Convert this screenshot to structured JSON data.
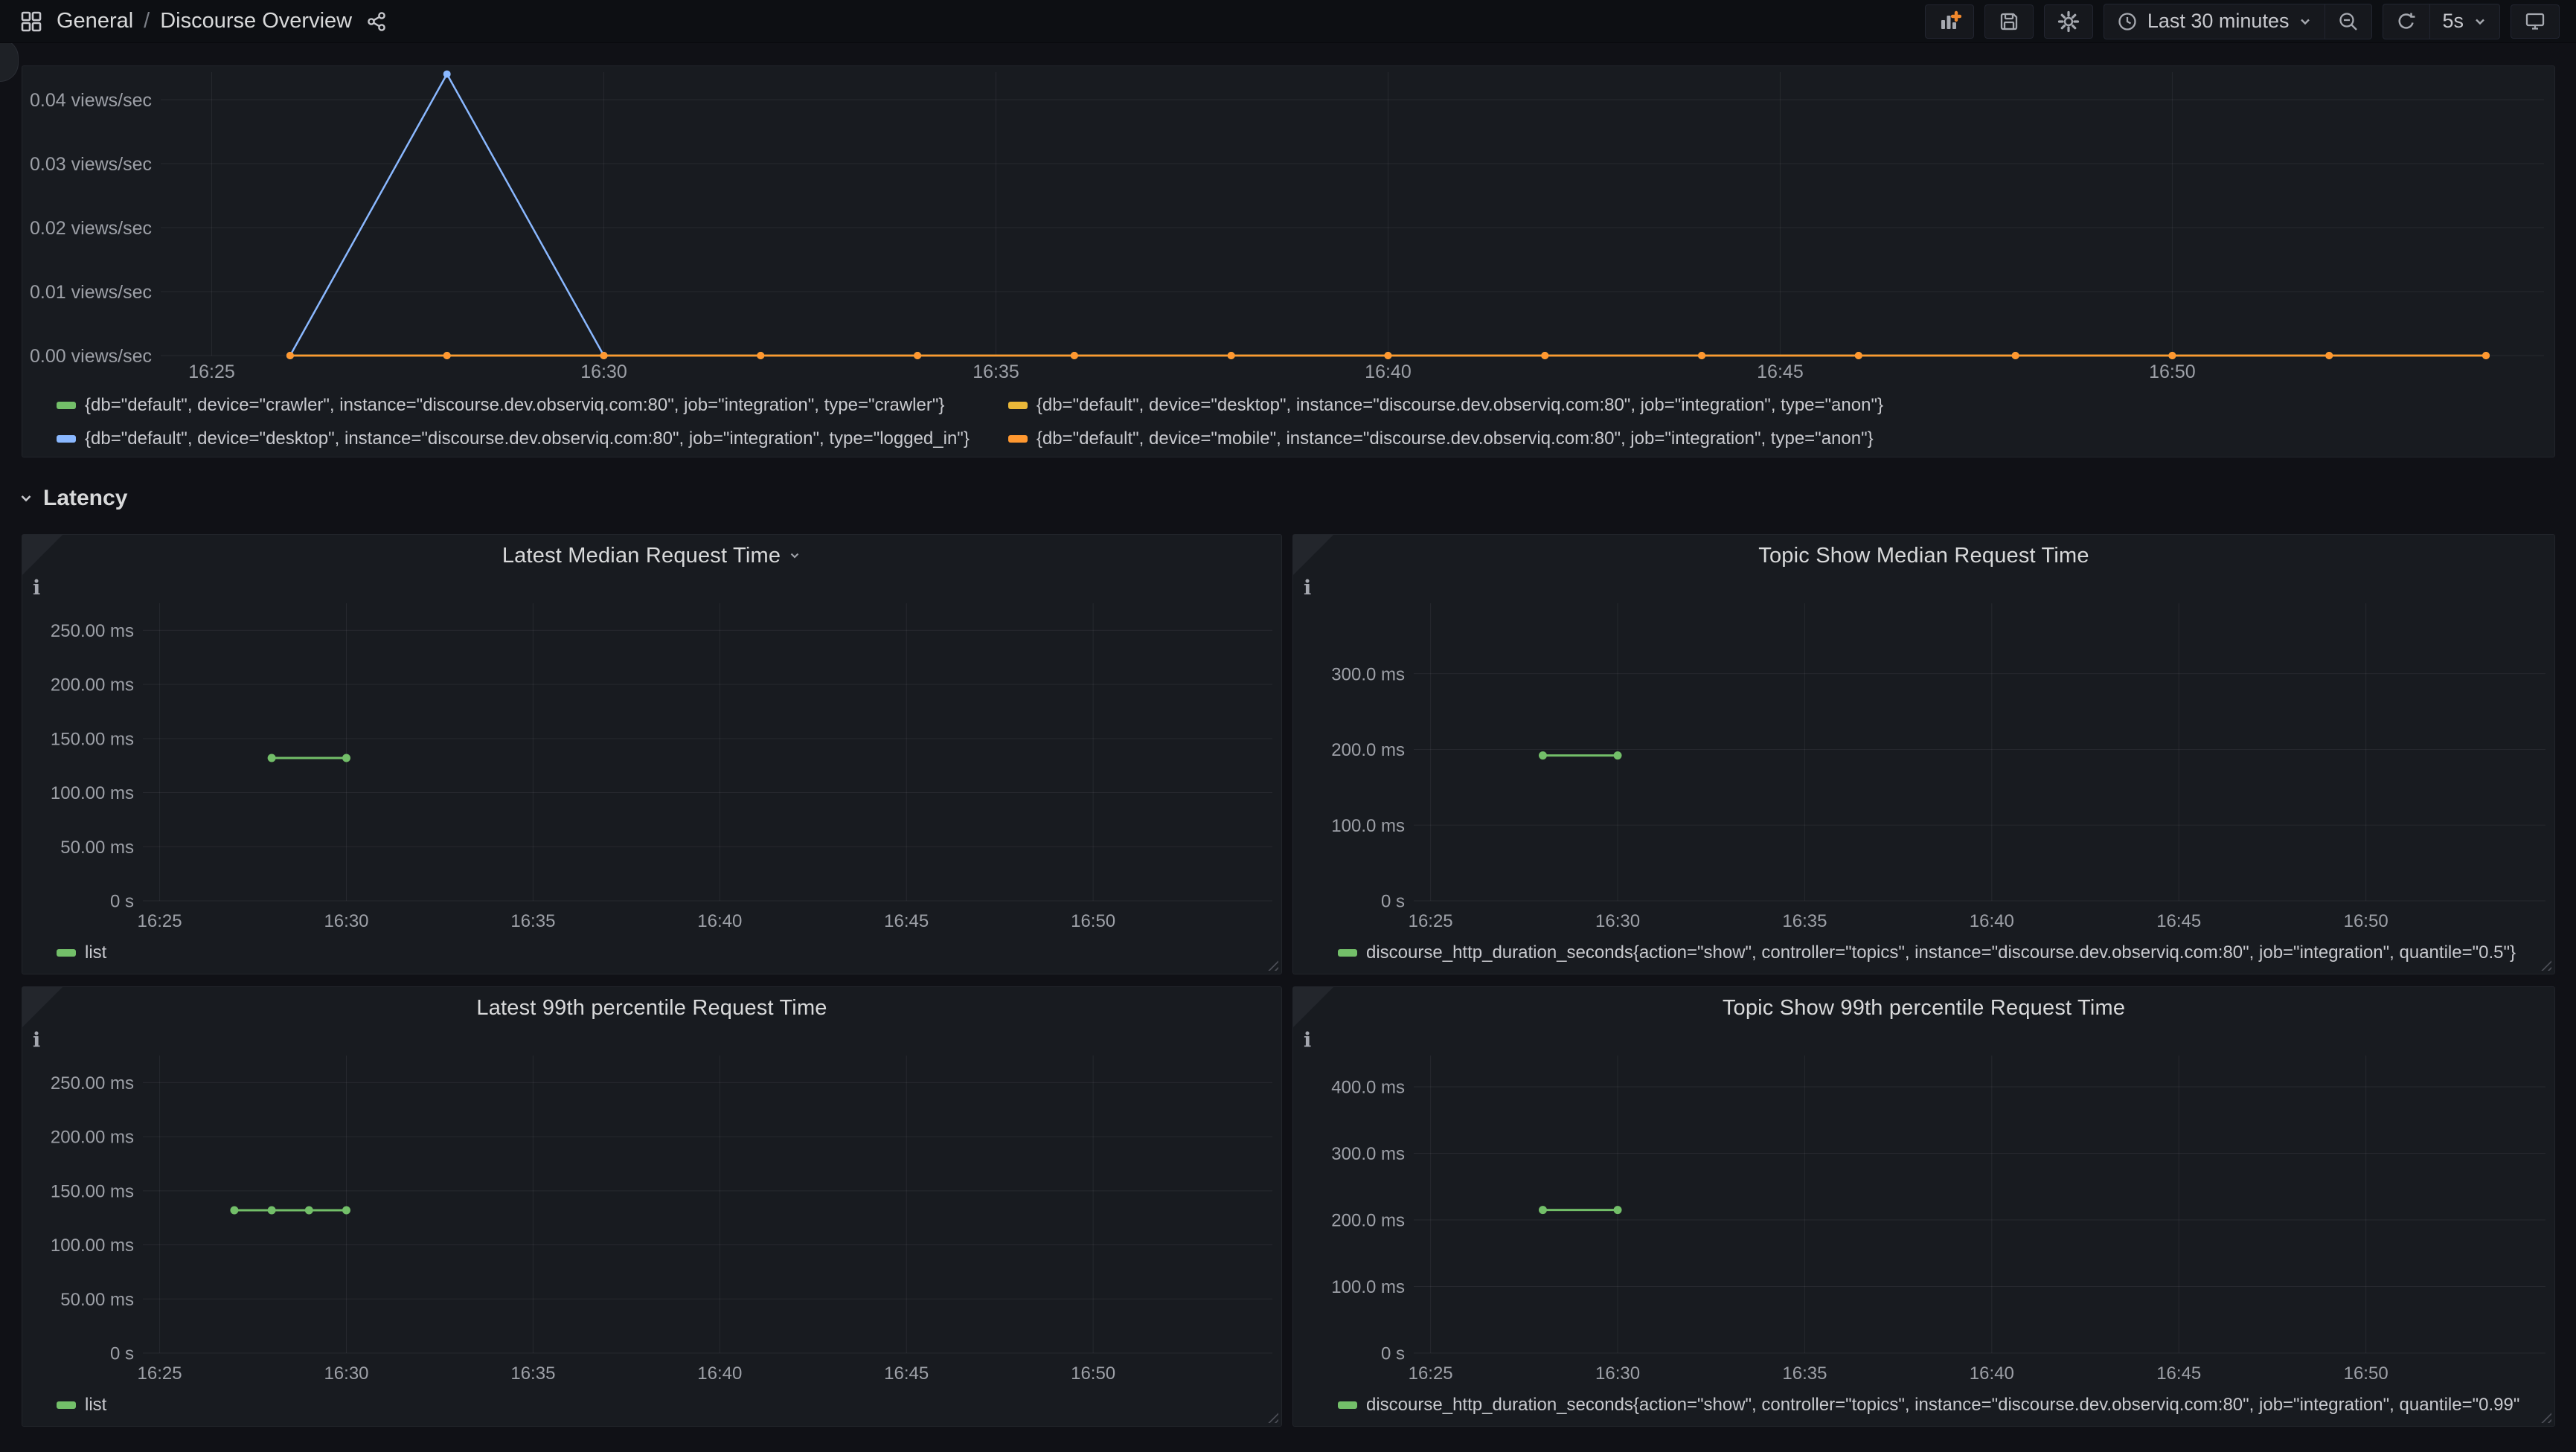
{
  "navbar": {
    "breadcrumb": {
      "section": "General",
      "separator": "/",
      "dashboard_name": "Discourse Overview"
    },
    "time_range_label": "Last 30 minutes",
    "refresh_interval_label": "5s"
  },
  "sections": {
    "latency": "Latency"
  },
  "colors": {
    "green": "#73BF69",
    "yellow": "#EAB839",
    "blue": "#8AB8FF",
    "orange": "#FF9830",
    "panel_bg": "#181b20",
    "page_bg": "#101116",
    "axis_text": "#9da0a7"
  },
  "chart_data": [
    {
      "type": "line",
      "title": "",
      "ylabel": "views/sec",
      "x_range": [
        984.35,
        1014.74
      ],
      "ylim": [
        0,
        0.0443
      ],
      "grid": true,
      "legend_position": "bottom",
      "y_ticks": [
        {
          "v": 0,
          "label": "0.00 views/sec"
        },
        {
          "v": 0.01,
          "label": "0.01 views/sec"
        },
        {
          "v": 0.02,
          "label": "0.02 views/sec"
        },
        {
          "v": 0.03,
          "label": "0.03 views/sec"
        },
        {
          "v": 0.04,
          "label": "0.04 views/sec"
        }
      ],
      "x_ticks": [
        "16:25",
        "16:30",
        "16:35",
        "16:40",
        "16:45",
        "16:50"
      ],
      "series": [
        {
          "name": "{db=\"default\", device=\"crawler\", instance=\"discourse.dev.observiq.com:80\", job=\"integration\", type=\"crawler\"}",
          "color": "#73BF69",
          "points": [
            [
              "16:26",
              0
            ],
            [
              "16:28",
              0
            ],
            [
              "16:30",
              0
            ],
            [
              "16:32",
              0
            ],
            [
              "16:34",
              0
            ],
            [
              "16:36",
              0
            ],
            [
              "16:38",
              0
            ],
            [
              "16:40",
              0
            ],
            [
              "16:42",
              0
            ],
            [
              "16:44",
              0
            ],
            [
              "16:46",
              0
            ],
            [
              "16:48",
              0
            ],
            [
              "16:50",
              0
            ],
            [
              "16:52",
              0
            ],
            [
              "16:54",
              0
            ]
          ]
        },
        {
          "name": "{db=\"default\", device=\"desktop\", instance=\"discourse.dev.observiq.com:80\", job=\"integration\", type=\"anon\"}",
          "color": "#EAB839",
          "points": [
            [
              "16:26",
              0
            ],
            [
              "16:28",
              0
            ],
            [
              "16:30",
              0
            ],
            [
              "16:32",
              0
            ],
            [
              "16:34",
              0
            ],
            [
              "16:36",
              0
            ],
            [
              "16:38",
              0
            ],
            [
              "16:40",
              0
            ],
            [
              "16:42",
              0
            ],
            [
              "16:44",
              0
            ],
            [
              "16:46",
              0
            ],
            [
              "16:48",
              0
            ],
            [
              "16:50",
              0
            ],
            [
              "16:52",
              0
            ],
            [
              "16:54",
              0
            ]
          ]
        },
        {
          "name": "{db=\"default\", device=\"desktop\", instance=\"discourse.dev.observiq.com:80\", job=\"integration\", type=\"logged_in\"}",
          "color": "#8AB8FF",
          "points": [
            [
              "16:26",
              0
            ],
            [
              "16:28",
              0.044
            ],
            [
              "16:30",
              0
            ]
          ]
        },
        {
          "name": "{db=\"default\", device=\"mobile\", instance=\"discourse.dev.observiq.com:80\", job=\"integration\", type=\"anon\"}",
          "color": "#FF9830",
          "points": [
            [
              "16:26",
              0
            ],
            [
              "16:28",
              0
            ],
            [
              "16:30",
              0
            ],
            [
              "16:32",
              0
            ],
            [
              "16:34",
              0
            ],
            [
              "16:36",
              0
            ],
            [
              "16:38",
              0
            ],
            [
              "16:40",
              0
            ],
            [
              "16:42",
              0
            ],
            [
              "16:44",
              0
            ],
            [
              "16:46",
              0
            ],
            [
              "16:48",
              0
            ],
            [
              "16:50",
              0
            ],
            [
              "16:52",
              0
            ],
            [
              "16:54",
              0
            ]
          ]
        }
      ]
    },
    {
      "type": "line",
      "title": "Latest Median Request Time",
      "x_range": [
        984.55,
        1014.8
      ],
      "ylim": [
        0,
        275
      ],
      "grid": true,
      "legend_position": "bottom-left",
      "y_ticks": [
        {
          "v": 0,
          "label": "0 s"
        },
        {
          "v": 50,
          "label": "50.00 ms"
        },
        {
          "v": 100,
          "label": "100.00 ms"
        },
        {
          "v": 150,
          "label": "150.00 ms"
        },
        {
          "v": 200,
          "label": "200.00 ms"
        },
        {
          "v": 250,
          "label": "250.00 ms"
        }
      ],
      "x_ticks": [
        "16:25",
        "16:30",
        "16:35",
        "16:40",
        "16:45",
        "16:50"
      ],
      "series": [
        {
          "name": "list",
          "color": "#73BF69",
          "points": [
            [
              "16:28",
              132
            ],
            [
              "16:30",
              132
            ]
          ]
        }
      ]
    },
    {
      "type": "line",
      "title": "Topic Show Median Request Time",
      "x_range": [
        984.55,
        1014.8
      ],
      "ylim": [
        0,
        393
      ],
      "grid": true,
      "legend_position": "bottom-left",
      "y_ticks": [
        {
          "v": 0,
          "label": "0 s"
        },
        {
          "v": 100,
          "label": "100.0 ms"
        },
        {
          "v": 200,
          "label": "200.0 ms"
        },
        {
          "v": 300,
          "label": "300.0 ms"
        }
      ],
      "x_ticks": [
        "16:25",
        "16:30",
        "16:35",
        "16:40",
        "16:45",
        "16:50"
      ],
      "series": [
        {
          "name": "discourse_http_duration_seconds{action=\"show\", controller=\"topics\", instance=\"discourse.dev.observiq.com:80\", job=\"integration\", quantile=\"0.5\"}",
          "color": "#73BF69",
          "points": [
            [
              "16:28",
              192
            ],
            [
              "16:30",
              192
            ]
          ]
        }
      ]
    },
    {
      "type": "line",
      "title": "Latest 99th percentile Request Time",
      "x_range": [
        984.55,
        1014.8
      ],
      "ylim": [
        0,
        275
      ],
      "grid": true,
      "legend_position": "bottom-left",
      "y_ticks": [
        {
          "v": 0,
          "label": "0 s"
        },
        {
          "v": 50,
          "label": "50.00 ms"
        },
        {
          "v": 100,
          "label": "100.00 ms"
        },
        {
          "v": 150,
          "label": "150.00 ms"
        },
        {
          "v": 200,
          "label": "200.00 ms"
        },
        {
          "v": 250,
          "label": "250.00 ms"
        }
      ],
      "x_ticks": [
        "16:25",
        "16:30",
        "16:35",
        "16:40",
        "16:45",
        "16:50"
      ],
      "series": [
        {
          "name": "list",
          "color": "#73BF69",
          "points": [
            [
              "16:27",
              132
            ],
            [
              "16:28",
              132
            ],
            [
              "16:29",
              132
            ],
            [
              "16:30",
              132
            ]
          ]
        }
      ]
    },
    {
      "type": "line",
      "title": "Topic Show 99th percentile Request Time",
      "x_range": [
        984.55,
        1014.8
      ],
      "ylim": [
        0,
        447
      ],
      "grid": true,
      "legend_position": "bottom-left",
      "y_ticks": [
        {
          "v": 0,
          "label": "0 s"
        },
        {
          "v": 100,
          "label": "100.0 ms"
        },
        {
          "v": 200,
          "label": "200.0 ms"
        },
        {
          "v": 300,
          "label": "300.0 ms"
        },
        {
          "v": 400,
          "label": "400.0 ms"
        }
      ],
      "x_ticks": [
        "16:25",
        "16:30",
        "16:35",
        "16:40",
        "16:45",
        "16:50"
      ],
      "series": [
        {
          "name": "discourse_http_duration_seconds{action=\"show\", controller=\"topics\", instance=\"discourse.dev.observiq.com:80\", job=\"integration\", quantile=\"0.99\"",
          "color": "#73BF69",
          "points": [
            [
              "16:28",
              215
            ],
            [
              "16:30",
              215
            ]
          ]
        }
      ]
    }
  ]
}
